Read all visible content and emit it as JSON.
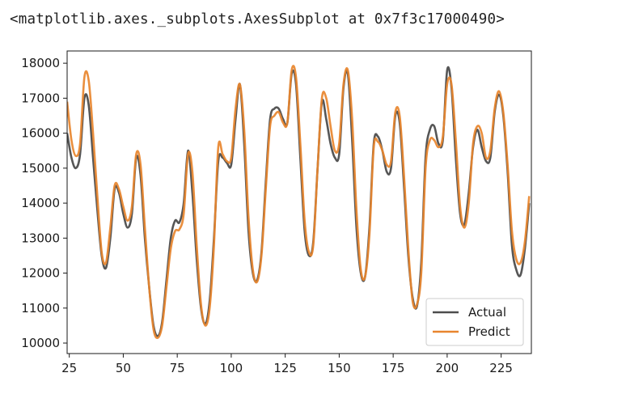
{
  "output_repr": "<matplotlib.axes._subplots.AxesSubplot at 0x7f3c17000490>",
  "chart_data": {
    "type": "line",
    "title": "",
    "xlabel": "",
    "ylabel": "",
    "xlim": [
      24,
      239
    ],
    "ylim": [
      9700,
      18350
    ],
    "xticks": [
      25,
      50,
      75,
      100,
      125,
      150,
      175,
      200,
      225
    ],
    "yticks": [
      10000,
      11000,
      12000,
      13000,
      14000,
      15000,
      16000,
      17000,
      18000
    ],
    "grid": false,
    "legend_position": "lower-right",
    "series": [
      {
        "name": "Actual",
        "color": "#4d4d4d",
        "points": [
          [
            24,
            16000
          ],
          [
            26,
            15300
          ],
          [
            28,
            15000
          ],
          [
            30,
            15400
          ],
          [
            32,
            17000
          ],
          [
            34,
            16800
          ],
          [
            36,
            15300
          ],
          [
            38,
            13800
          ],
          [
            40,
            12500
          ],
          [
            42,
            12150
          ],
          [
            44,
            13000
          ],
          [
            46,
            14400
          ],
          [
            48,
            14300
          ],
          [
            50,
            13700
          ],
          [
            52,
            13300
          ],
          [
            54,
            13700
          ],
          [
            56,
            15300
          ],
          [
            58,
            14800
          ],
          [
            60,
            13000
          ],
          [
            62,
            11600
          ],
          [
            64,
            10500
          ],
          [
            66,
            10200
          ],
          [
            68,
            10600
          ],
          [
            70,
            11800
          ],
          [
            72,
            13000
          ],
          [
            74,
            13500
          ],
          [
            76,
            13450
          ],
          [
            78,
            14000
          ],
          [
            80,
            15500
          ],
          [
            82,
            14300
          ],
          [
            84,
            12400
          ],
          [
            86,
            11000
          ],
          [
            88,
            10550
          ],
          [
            90,
            11200
          ],
          [
            92,
            13000
          ],
          [
            94,
            15200
          ],
          [
            96,
            15300
          ],
          [
            98,
            15150
          ],
          [
            100,
            15100
          ],
          [
            102,
            16400
          ],
          [
            104,
            17400
          ],
          [
            106,
            15700
          ],
          [
            108,
            13200
          ],
          [
            110,
            12000
          ],
          [
            112,
            11800
          ],
          [
            114,
            12600
          ],
          [
            116,
            14600
          ],
          [
            118,
            16400
          ],
          [
            120,
            16700
          ],
          [
            122,
            16700
          ],
          [
            124,
            16400
          ],
          [
            126,
            16300
          ],
          [
            128,
            17700
          ],
          [
            130,
            17400
          ],
          [
            132,
            15300
          ],
          [
            134,
            13200
          ],
          [
            136,
            12500
          ],
          [
            138,
            12900
          ],
          [
            140,
            15000
          ],
          [
            142,
            16900
          ],
          [
            144,
            16400
          ],
          [
            146,
            15700
          ],
          [
            148,
            15300
          ],
          [
            150,
            15400
          ],
          [
            152,
            17300
          ],
          [
            154,
            17700
          ],
          [
            156,
            15800
          ],
          [
            158,
            13300
          ],
          [
            160,
            12000
          ],
          [
            162,
            11900
          ],
          [
            164,
            13300
          ],
          [
            166,
            15700
          ],
          [
            168,
            15900
          ],
          [
            170,
            15500
          ],
          [
            172,
            14900
          ],
          [
            174,
            15000
          ],
          [
            176,
            16500
          ],
          [
            178,
            16300
          ],
          [
            180,
            14500
          ],
          [
            182,
            12500
          ],
          [
            184,
            11300
          ],
          [
            186,
            11050
          ],
          [
            188,
            12300
          ],
          [
            190,
            15300
          ],
          [
            192,
            16100
          ],
          [
            194,
            16200
          ],
          [
            196,
            15700
          ],
          [
            198,
            15800
          ],
          [
            200,
            17800
          ],
          [
            202,
            17300
          ],
          [
            204,
            15300
          ],
          [
            206,
            13700
          ],
          [
            208,
            13400
          ],
          [
            210,
            14300
          ],
          [
            212,
            15600
          ],
          [
            214,
            16100
          ],
          [
            216,
            15600
          ],
          [
            218,
            15200
          ],
          [
            220,
            15300
          ],
          [
            222,
            16600
          ],
          [
            224,
            17100
          ],
          [
            226,
            16500
          ],
          [
            228,
            14900
          ],
          [
            230,
            12800
          ],
          [
            232,
            12100
          ],
          [
            234,
            11950
          ],
          [
            236,
            12700
          ],
          [
            238,
            14000
          ]
        ]
      },
      {
        "name": "Predict",
        "color": "#e8852e",
        "points": [
          [
            24,
            16900
          ],
          [
            26,
            15800
          ],
          [
            28,
            15350
          ],
          [
            30,
            15700
          ],
          [
            32,
            17600
          ],
          [
            34,
            17500
          ],
          [
            36,
            16000
          ],
          [
            38,
            14200
          ],
          [
            40,
            12600
          ],
          [
            42,
            12300
          ],
          [
            44,
            13300
          ],
          [
            46,
            14500
          ],
          [
            48,
            14400
          ],
          [
            50,
            13900
          ],
          [
            52,
            13500
          ],
          [
            54,
            13900
          ],
          [
            56,
            15400
          ],
          [
            58,
            15100
          ],
          [
            60,
            13300
          ],
          [
            62,
            11600
          ],
          [
            64,
            10400
          ],
          [
            66,
            10150
          ],
          [
            68,
            10500
          ],
          [
            70,
            11600
          ],
          [
            72,
            12700
          ],
          [
            74,
            13200
          ],
          [
            76,
            13250
          ],
          [
            78,
            13700
          ],
          [
            80,
            15400
          ],
          [
            82,
            14900
          ],
          [
            84,
            12800
          ],
          [
            86,
            11100
          ],
          [
            88,
            10500
          ],
          [
            90,
            11000
          ],
          [
            92,
            12800
          ],
          [
            94,
            15600
          ],
          [
            96,
            15400
          ],
          [
            98,
            15200
          ],
          [
            100,
            15300
          ],
          [
            102,
            16700
          ],
          [
            104,
            17400
          ],
          [
            106,
            16100
          ],
          [
            108,
            13600
          ],
          [
            110,
            12100
          ],
          [
            112,
            11750
          ],
          [
            114,
            12500
          ],
          [
            116,
            14400
          ],
          [
            118,
            16200
          ],
          [
            120,
            16500
          ],
          [
            122,
            16600
          ],
          [
            124,
            16300
          ],
          [
            126,
            16300
          ],
          [
            128,
            17800
          ],
          [
            130,
            17600
          ],
          [
            132,
            15700
          ],
          [
            134,
            13500
          ],
          [
            136,
            12600
          ],
          [
            138,
            12800
          ],
          [
            140,
            15000
          ],
          [
            142,
            17000
          ],
          [
            144,
            17000
          ],
          [
            146,
            16200
          ],
          [
            148,
            15500
          ],
          [
            150,
            15700
          ],
          [
            152,
            17400
          ],
          [
            154,
            17800
          ],
          [
            156,
            16400
          ],
          [
            158,
            13800
          ],
          [
            160,
            12100
          ],
          [
            162,
            11900
          ],
          [
            164,
            13100
          ],
          [
            166,
            15600
          ],
          [
            168,
            15750
          ],
          [
            170,
            15500
          ],
          [
            172,
            15100
          ],
          [
            174,
            15200
          ],
          [
            176,
            16600
          ],
          [
            178,
            16500
          ],
          [
            180,
            14800
          ],
          [
            182,
            12700
          ],
          [
            184,
            11200
          ],
          [
            186,
            11100
          ],
          [
            188,
            12000
          ],
          [
            190,
            15000
          ],
          [
            192,
            15800
          ],
          [
            194,
            15800
          ],
          [
            196,
            15600
          ],
          [
            198,
            15900
          ],
          [
            200,
            17400
          ],
          [
            202,
            17400
          ],
          [
            204,
            15800
          ],
          [
            206,
            13900
          ],
          [
            208,
            13300
          ],
          [
            210,
            14000
          ],
          [
            212,
            15700
          ],
          [
            214,
            16200
          ],
          [
            216,
            16000
          ],
          [
            218,
            15300
          ],
          [
            220,
            15500
          ],
          [
            222,
            16700
          ],
          [
            224,
            17200
          ],
          [
            226,
            16600
          ],
          [
            228,
            15100
          ],
          [
            230,
            13200
          ],
          [
            232,
            12400
          ],
          [
            234,
            12300
          ],
          [
            236,
            12900
          ],
          [
            238,
            14200
          ]
        ]
      }
    ]
  }
}
